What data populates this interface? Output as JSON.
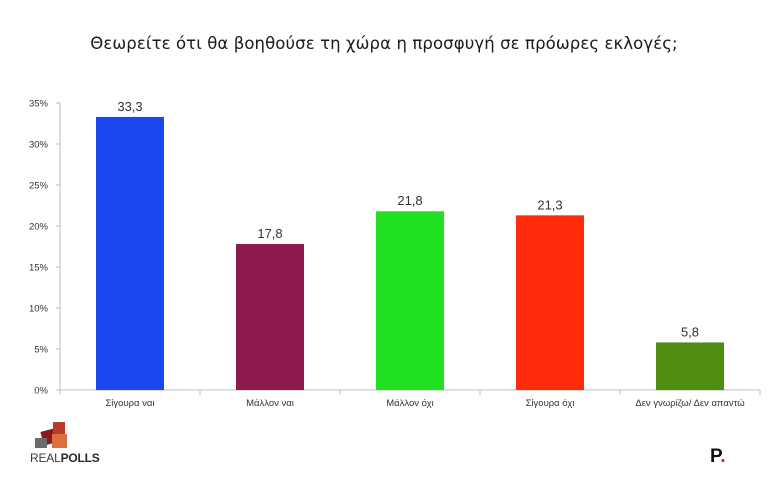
{
  "chart_data": {
    "type": "bar",
    "title": "Θεωρείτε ότι θα βοηθούσε τη χώρα η προσφυγή σε πρόωρες εκλογές;",
    "categories": [
      "Σίγουρα ναι",
      "Μάλλον ναι",
      "Μάλλον όχι",
      "Σίγουρα όχι",
      "Δεν γνωρίζω/ Δεν απαντώ"
    ],
    "values": [
      33.3,
      17.8,
      21.8,
      21.3,
      5.8
    ],
    "value_labels": [
      "33,3",
      "17,8",
      "21,8",
      "21,3",
      "5,8"
    ],
    "colors": [
      "#1c46f0",
      "#8d1a4f",
      "#22e022",
      "#ff2a0a",
      "#4e8c12"
    ],
    "ylim": [
      0,
      35
    ],
    "yticks": [
      0,
      5,
      10,
      15,
      20,
      25,
      30,
      35
    ],
    "ytick_labels": [
      "0%",
      "5%",
      "10%",
      "15%",
      "20%",
      "25%",
      "30%",
      "35%"
    ],
    "grid": false,
    "legend": "none"
  },
  "logo": {
    "real": "REAL",
    "polls": "POLLS",
    "brand_mark": "P",
    "brand_dot": "."
  }
}
